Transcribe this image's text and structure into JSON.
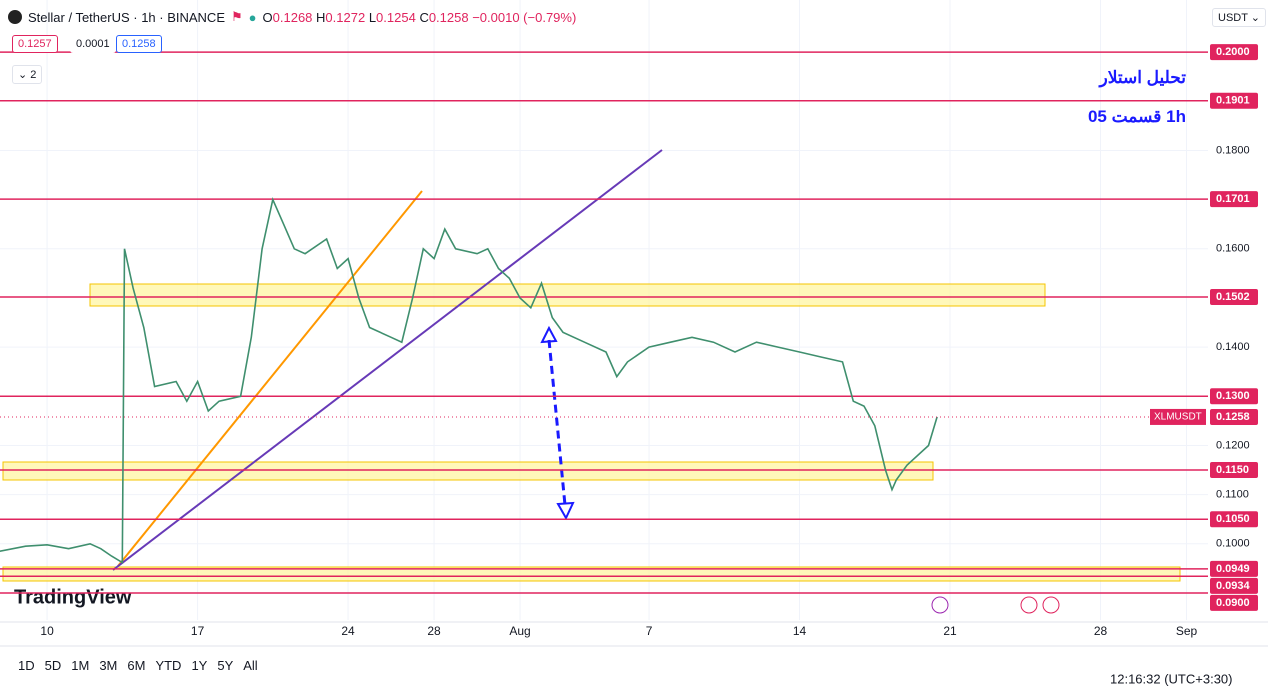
{
  "header": {
    "symbol": "Stellar / TetherUS · 1h · BINANCE",
    "ohlc": [
      {
        "label": "O",
        "value": "0.1268"
      },
      {
        "label": "H",
        "value": "0.1272"
      },
      {
        "label": "L",
        "value": "0.1254"
      },
      {
        "label": "C",
        "value": "0.1258"
      }
    ],
    "change": "−0.0010 (−0.79%)",
    "sell": "0.1257",
    "spread": "0.0001",
    "buy": "0.1258",
    "indicators": "2",
    "currency": "USDT"
  },
  "chart_data": {
    "type": "line",
    "color": "#3f8f6e",
    "x": [
      -2.2,
      -1,
      0,
      1,
      2,
      2.5,
      3,
      3.5,
      3.6,
      4,
      4.5,
      5,
      6,
      6.5,
      7,
      7.5,
      8,
      9,
      9.5,
      10,
      10.5,
      11,
      11.5,
      12,
      13,
      13.5,
      14,
      14.5,
      15,
      16,
      16.5,
      17,
      17.5,
      18,
      18.5,
      19,
      20,
      20.5,
      21,
      21.5,
      22,
      22.5,
      23,
      23.5,
      24,
      25,
      26,
      26.5,
      27,
      28,
      29,
      30,
      31,
      32,
      33,
      34,
      35,
      36,
      37,
      37.5,
      38,
      38.5,
      39,
      39.3,
      39.5,
      40,
      41,
      41.4
    ],
    "values": [
      0.0985,
      0.0995,
      0.0998,
      0.099,
      0.1,
      0.099,
      0.0975,
      0.0962,
      0.16,
      0.152,
      0.144,
      0.132,
      0.133,
      0.129,
      0.133,
      0.127,
      0.129,
      0.13,
      0.142,
      0.16,
      0.17,
      0.165,
      0.16,
      0.159,
      0.162,
      0.156,
      0.158,
      0.15,
      0.144,
      0.142,
      0.141,
      0.15,
      0.16,
      0.158,
      0.164,
      0.16,
      0.159,
      0.16,
      0.156,
      0.154,
      0.15,
      0.148,
      0.153,
      0.146,
      0.143,
      0.141,
      0.139,
      0.134,
      0.137,
      0.14,
      0.141,
      0.142,
      0.141,
      0.139,
      0.141,
      0.14,
      0.139,
      0.138,
      0.137,
      0.129,
      0.128,
      0.124,
      0.115,
      0.111,
      0.113,
      0.116,
      0.12,
      0.1258
    ],
    "xlim": [
      -2.19,
      54.0
    ],
    "ylim": [
      0.0845,
      0.2106
    ],
    "xticks": [
      {
        "value": 0,
        "label": "10"
      },
      {
        "value": 7,
        "label": "17"
      },
      {
        "value": 14,
        "label": "24"
      },
      {
        "value": 18,
        "label": "28"
      },
      {
        "value": 22,
        "label": "Aug"
      },
      {
        "value": 28,
        "label": "7"
      },
      {
        "value": 35,
        "label": "14"
      },
      {
        "value": 42,
        "label": "21"
      },
      {
        "value": 49,
        "label": "28"
      },
      {
        "value": 53,
        "label": "Sep"
      }
    ],
    "yticks": [
      {
        "value": 0.18,
        "label": "0.1800"
      },
      {
        "value": 0.16,
        "label": "0.1600"
      },
      {
        "value": 0.14,
        "label": "0.1400"
      },
      {
        "value": 0.12,
        "label": "0.1200"
      },
      {
        "value": 0.11,
        "label": "0.1100"
      },
      {
        "value": 0.1,
        "label": "0.1000"
      }
    ],
    "level_color": "#e0245e",
    "levels": [
      {
        "value": 0.2,
        "label": "0.2000"
      },
      {
        "value": 0.1901,
        "label": "0.1901"
      },
      {
        "value": 0.1701,
        "label": "0.1701"
      },
      {
        "value": 0.1502,
        "label": "0.1502"
      },
      {
        "value": 0.13,
        "label": "0.1300"
      },
      {
        "value": 0.115,
        "label": "0.1150"
      },
      {
        "value": 0.105,
        "label": "0.1050"
      },
      {
        "value": 0.0949,
        "label": "0.0949"
      },
      {
        "value": 0.0934,
        "label": "0.0934"
      },
      {
        "value": 0.09,
        "label": "0.0900"
      }
    ],
    "last_price": {
      "name": "XLMUSDT",
      "value": 0.1258,
      "label": "0.1258"
    },
    "annotations": [
      "تحلیل استلار",
      "1h  قسمت 05"
    ]
  },
  "footer": {
    "ranges": [
      "1D",
      "5D",
      "1M",
      "3M",
      "6M",
      "YTD",
      "1Y",
      "5Y",
      "All"
    ],
    "clock": "12:16:32 (UTC+3:30)",
    "logo": "TradingView"
  }
}
